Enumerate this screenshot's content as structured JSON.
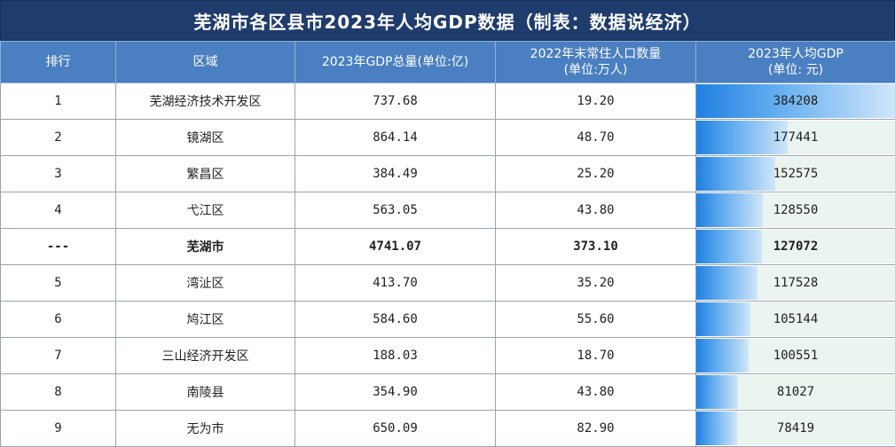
{
  "title": "芜湖市各区县市2023年人均GDP数据（制表：数据说经济）",
  "headers": {
    "rank": "排行",
    "area": "区域",
    "gdp_total": "2023年GDP总量(单位:亿)",
    "population_line1": "2022年末常住人口数量",
    "population_line2": "(单位:万人)",
    "per_capita_line1": "2023年人均GDP",
    "per_capita_line2": "(单位: 元)"
  },
  "rows": [
    {
      "rank": "1",
      "area": "芜湖经济技术开发区",
      "gdp_total": "737.68",
      "population": "19.20",
      "per_capita": "384208",
      "per_capita_num": 384208,
      "bold": false
    },
    {
      "rank": "2",
      "area": "镜湖区",
      "gdp_total": "864.14",
      "population": "48.70",
      "per_capita": "177441",
      "per_capita_num": 177441,
      "bold": false
    },
    {
      "rank": "3",
      "area": "繁昌区",
      "gdp_total": "384.49",
      "population": "25.20",
      "per_capita": "152575",
      "per_capita_num": 152575,
      "bold": false
    },
    {
      "rank": "4",
      "area": "弋江区",
      "gdp_total": "563.05",
      "population": "43.80",
      "per_capita": "128550",
      "per_capita_num": 128550,
      "bold": false
    },
    {
      "rank": "---",
      "area": "芜湖市",
      "gdp_total": "4741.07",
      "population": "373.10",
      "per_capita": "127072",
      "per_capita_num": 127072,
      "bold": true
    },
    {
      "rank": "5",
      "area": "湾沚区",
      "gdp_total": "413.70",
      "population": "35.20",
      "per_capita": "117528",
      "per_capita_num": 117528,
      "bold": false
    },
    {
      "rank": "6",
      "area": "鸠江区",
      "gdp_total": "584.60",
      "population": "55.60",
      "per_capita": "105144",
      "per_capita_num": 105144,
      "bold": false
    },
    {
      "rank": "7",
      "area": "三山经济开发区",
      "gdp_total": "188.03",
      "population": "18.70",
      "per_capita": "100551",
      "per_capita_num": 100551,
      "bold": false
    },
    {
      "rank": "8",
      "area": "南陵县",
      "gdp_total": "354.90",
      "population": "43.80",
      "per_capita": "81027",
      "per_capita_num": 81027,
      "bold": false
    },
    {
      "rank": "9",
      "area": "无为市",
      "gdp_total": "650.09",
      "population": "82.90",
      "per_capita": "78419",
      "per_capita_num": 78419,
      "bold": false
    }
  ],
  "colors": {
    "title_bg": "#1f3c6c",
    "header_bg": "#4a7fc1",
    "row_shade": "#dce6f1",
    "bar_start": "#1f7fe0",
    "bar_end": "#cfe6f8"
  }
}
